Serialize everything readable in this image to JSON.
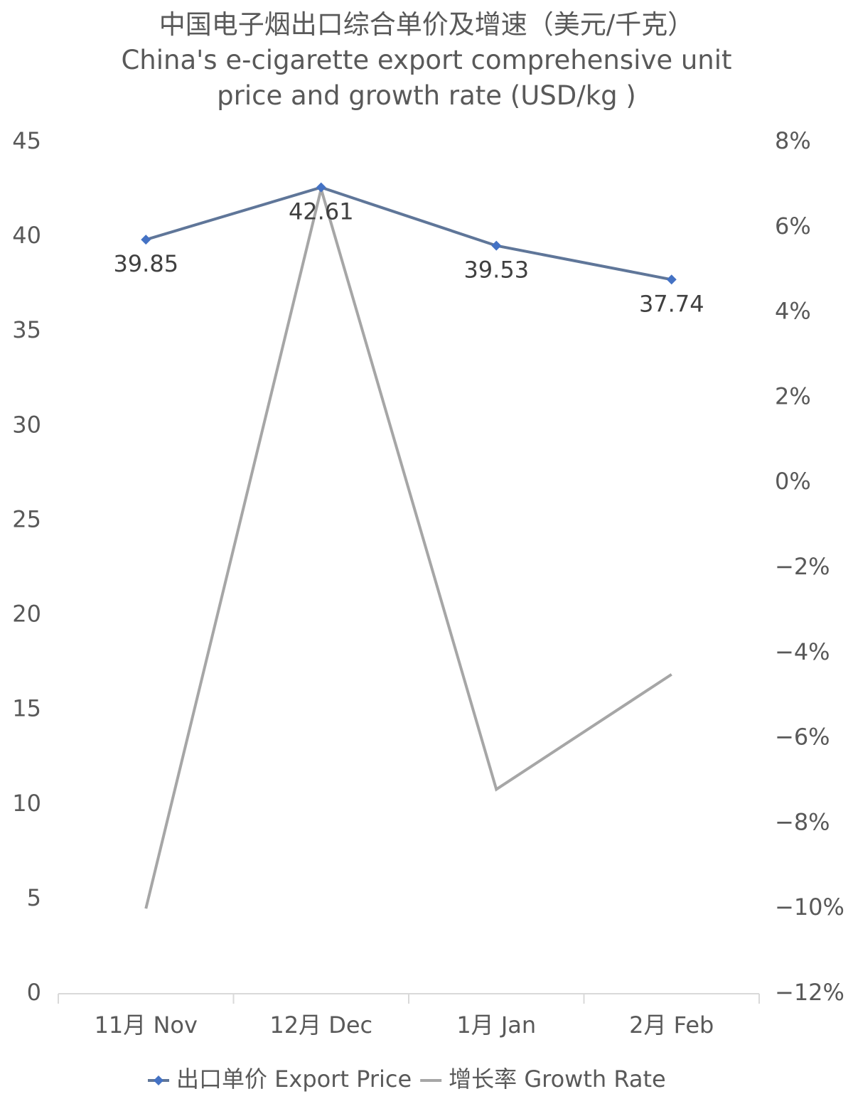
{
  "chart_data": {
    "type": "line",
    "title": "中国电子烟出口综合单价及增速（美元/千克）",
    "subtitle": "China's e-cigarette export comprehensive unit price and growth rate (USD/kg )",
    "categories": [
      "11月 Nov",
      "12月 Dec",
      "1月 Jan",
      "2月 Feb"
    ],
    "series": [
      {
        "name": "出口单价 Export Price",
        "color": "#5f7699",
        "marker_color": "#4472c4",
        "values": [
          39.85,
          42.61,
          39.53,
          37.74
        ],
        "data_labels": true
      },
      {
        "name": "增长率 Growth Rate",
        "color": "#a6a6a6",
        "axis": "y2",
        "values": [
          -10.0,
          6.9,
          -7.2,
          -4.5
        ]
      }
    ],
    "ylim": [
      0,
      45
    ],
    "yticks": [
      0,
      5,
      10,
      15,
      20,
      25,
      30,
      35,
      40,
      45
    ],
    "y2lim": [
      -12,
      8
    ],
    "y2ticks": [
      {
        "value": -12,
        "label": "−12%"
      },
      {
        "value": -10,
        "label": "−10%"
      },
      {
        "value": -8,
        "label": "−8%"
      },
      {
        "value": -6,
        "label": "−6%"
      },
      {
        "value": -4,
        "label": "−4%"
      },
      {
        "value": -2,
        "label": "−2%"
      },
      {
        "value": 0,
        "label": "0%"
      },
      {
        "value": 2,
        "label": "2%"
      },
      {
        "value": 4,
        "label": "4%"
      },
      {
        "value": 6,
        "label": "6%"
      },
      {
        "value": 8,
        "label": "8%"
      }
    ],
    "grid": false,
    "legend": "bottom"
  }
}
